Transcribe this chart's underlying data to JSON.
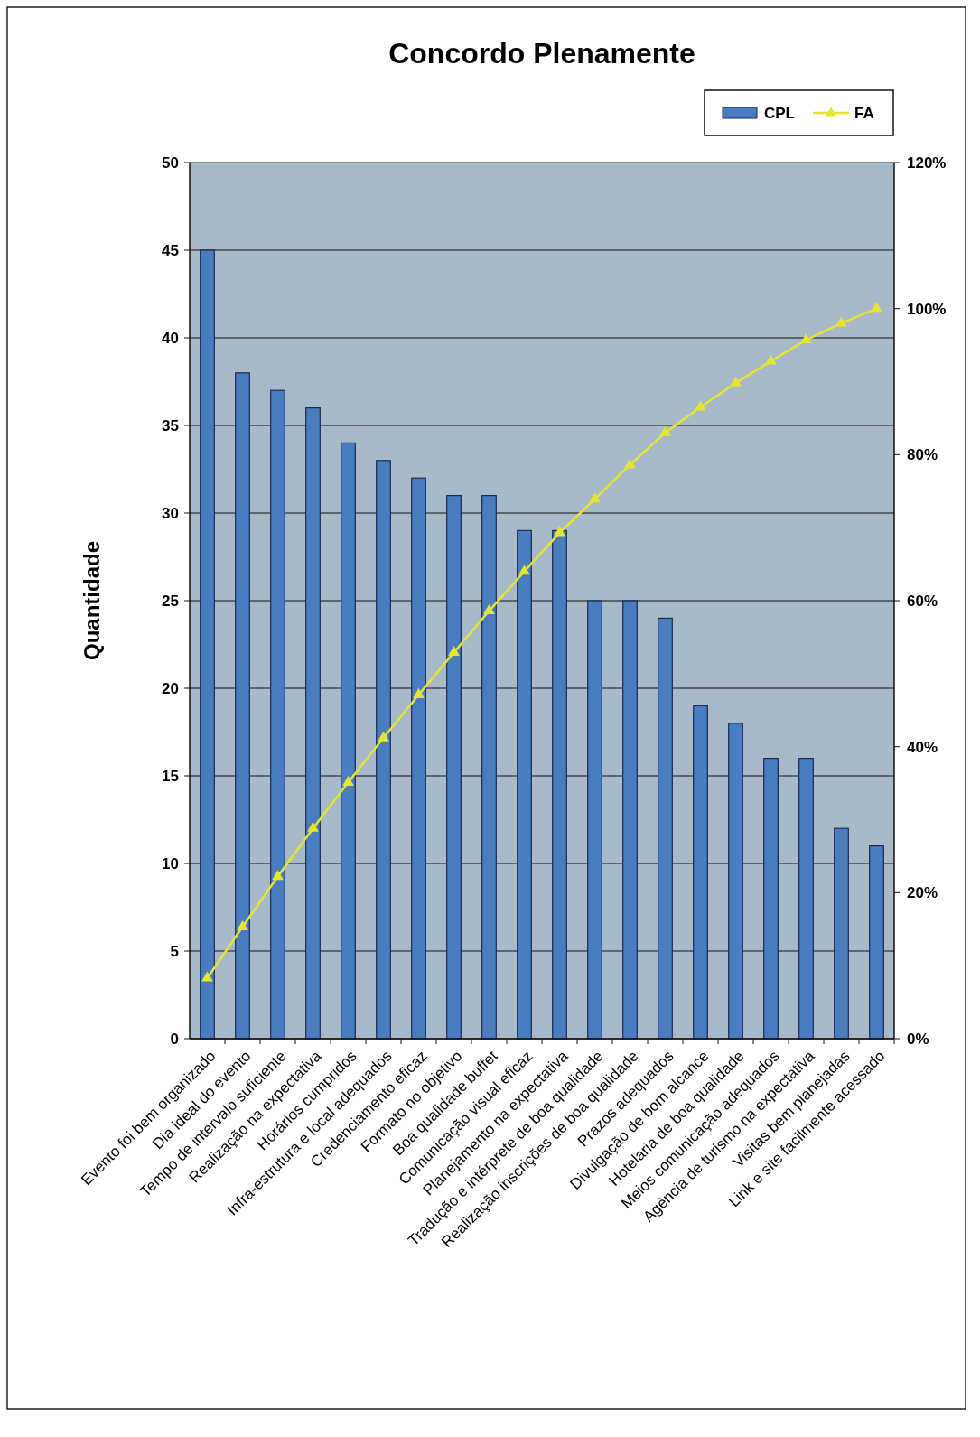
{
  "chart_data": {
    "type": "bar",
    "title": "Concordo Plenamente",
    "ylabel": "Quantidade",
    "categories": [
      "Evento foi bem organizado",
      "Dia ideal do evento",
      "Tempo de intervalo suficiente",
      "Realização na expectativa",
      "Horários cumpridos",
      "Infra-estrutura e local adequados",
      "Credenciamento eficaz",
      "Formato no objetivo",
      "Boa qualidade buffet",
      "Comunicação visual eficaz",
      "Planejamento na expectativa",
      "Tradução e intérprete de boa qualidade",
      "Realização inscrições de boa qualidade",
      "Prazos adequados",
      "Divulgação de bom alcance",
      "Hotelaria de boa qualidade",
      "Meios comunicação adequados",
      "Agência de turismo na expectativa",
      "Visitas bem planejadas",
      "Link e site facilmente acessado"
    ],
    "series": [
      {
        "name": "CPL",
        "color": "#4a7cc0",
        "values": [
          45,
          38,
          37,
          36,
          34,
          33,
          32,
          31,
          31,
          29,
          29,
          25,
          25,
          24,
          19,
          18,
          16,
          16,
          12,
          11
        ]
      },
      {
        "name": "FA",
        "type": "line",
        "axis": "y2",
        "color": "#e6e632",
        "values": [
          8.3,
          15.3,
          22.2,
          28.8,
          35.1,
          41.2,
          47.1,
          52.9,
          58.6,
          64.0,
          69.3,
          73.9,
          78.6,
          83.0,
          86.5,
          89.8,
          92.8,
          95.7,
          98.0,
          100
        ]
      }
    ],
    "ylim": [
      0,
      50
    ],
    "yticks": [
      0,
      5,
      10,
      15,
      20,
      25,
      30,
      35,
      40,
      45,
      50
    ],
    "y2lim": [
      0,
      120
    ],
    "y2ticks": [
      {
        "value": 0,
        "label": "0%"
      },
      {
        "value": 20,
        "label": "20%"
      },
      {
        "value": 40,
        "label": "40%"
      },
      {
        "value": 60,
        "label": "60%"
      },
      {
        "value": 80,
        "label": "80%"
      },
      {
        "value": 100,
        "label": "100%"
      },
      {
        "value": 120,
        "label": "120%"
      }
    ],
    "grid": "y",
    "legend": "top right",
    "marker": "triangle"
  }
}
